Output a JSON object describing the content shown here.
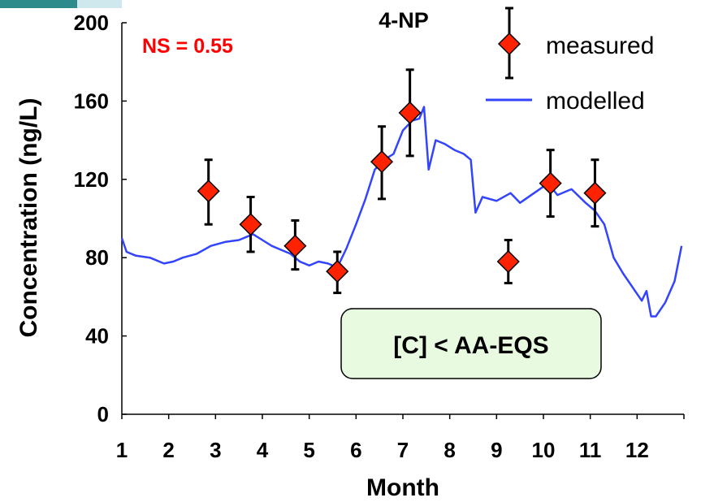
{
  "chart_data": {
    "type": "scatter",
    "title": "4-NP",
    "xlabel": "Month",
    "ylabel": "Concentration (ng/L)",
    "xlim": [
      1,
      13
    ],
    "ylim": [
      0,
      200
    ],
    "x_ticks": [
      "1",
      "2",
      "3",
      "4",
      "5",
      "6",
      "7",
      "8",
      "9",
      "10",
      "11",
      "12"
    ],
    "y_ticks": [
      "0",
      "40",
      "80",
      "120",
      "160",
      "200"
    ],
    "annotation_ns": "NS = 0.55",
    "annotation_box": "[C] < AA-EQS",
    "legend_position": "top-right",
    "colors": {
      "measured": "#ff2200",
      "modelled": "#3344ff",
      "box_fill": "#e8fbe0"
    },
    "series": [
      {
        "name": "measured",
        "kind": "points-with-error",
        "points": [
          {
            "x": 2.85,
            "y": 114,
            "err_low": 97,
            "err_high": 130
          },
          {
            "x": 3.75,
            "y": 97,
            "err_low": 83,
            "err_high": 111
          },
          {
            "x": 4.7,
            "y": 86,
            "err_low": 74,
            "err_high": 99
          },
          {
            "x": 5.6,
            "y": 73,
            "err_low": 62,
            "err_high": 83
          },
          {
            "x": 6.55,
            "y": 129,
            "err_low": 110,
            "err_high": 147
          },
          {
            "x": 7.15,
            "y": 154,
            "err_low": 132,
            "err_high": 176
          },
          {
            "x": 9.25,
            "y": 78,
            "err_low": 67,
            "err_high": 89
          },
          {
            "x": 10.15,
            "y": 118,
            "err_low": 101,
            "err_high": 135
          },
          {
            "x": 11.1,
            "y": 113,
            "err_low": 96,
            "err_high": 130
          }
        ]
      },
      {
        "name": "modelled",
        "kind": "line",
        "x": [
          1.0,
          1.1,
          1.3,
          1.6,
          1.9,
          2.1,
          2.3,
          2.6,
          2.9,
          3.2,
          3.5,
          3.8,
          4.0,
          4.2,
          4.4,
          4.6,
          4.8,
          5.0,
          5.2,
          5.4,
          5.6,
          5.8,
          6.0,
          6.2,
          6.4,
          6.6,
          6.8,
          7.0,
          7.2,
          7.35,
          7.45,
          7.55,
          7.7,
          7.9,
          8.1,
          8.3,
          8.45,
          8.55,
          8.7,
          9.0,
          9.3,
          9.5,
          9.8,
          10.1,
          10.3,
          10.6,
          10.9,
          11.1,
          11.3,
          11.5,
          11.7,
          11.9,
          12.1,
          12.2,
          12.3,
          12.4,
          12.6,
          12.8,
          12.95
        ],
        "values": [
          90,
          83,
          81,
          80,
          77,
          78,
          80,
          82,
          86,
          88,
          89,
          92,
          89,
          86,
          84,
          82,
          78,
          76,
          78,
          77,
          75,
          85,
          97,
          110,
          125,
          130,
          133,
          145,
          150,
          151,
          157,
          125,
          140,
          138,
          135,
          133,
          130,
          103,
          111,
          109,
          113,
          108,
          113,
          118,
          112,
          115,
          108,
          104,
          97,
          80,
          72,
          65,
          58,
          63,
          50,
          50,
          57,
          68,
          86
        ]
      }
    ]
  }
}
